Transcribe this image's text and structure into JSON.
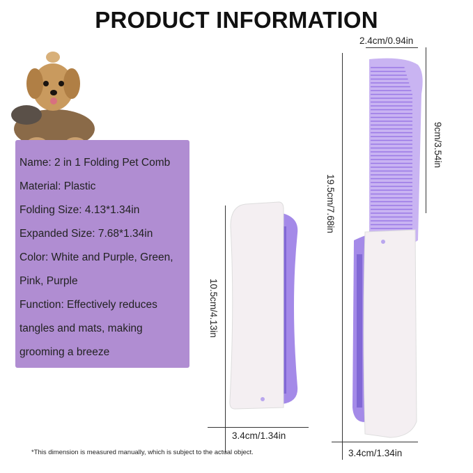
{
  "title": "PRODUCT INFORMATION",
  "info": {
    "lines": [
      "Name: 2 in 1 Folding Pet Comb",
      "Material: Plastic",
      "Folding Size: 4.13*1.34in",
      "Expanded Size: 7.68*1.34in",
      "Color: White and Purple, Green,",
      "Pink, Purple",
      "Function: Effectively reduces",
      "tangles and mats, making",
      "grooming a breeze"
    ]
  },
  "dimensions": {
    "folded_height": "10.5cm/4.13in",
    "folded_width": "3.4cm/1.34in",
    "expanded_height": "19.5cm/7.68in",
    "expanded_width": "3.4cm/1.34in",
    "teeth_width": "2.4cm/0.94in",
    "teeth_length": "9cm/3.54in"
  },
  "footnote": "*This dimension is measured manually, which is subject to the actual object.",
  "colors": {
    "panel": "#b08dd2",
    "comb_purple": "#a48ae8",
    "handle_white": "#f4eff2"
  }
}
